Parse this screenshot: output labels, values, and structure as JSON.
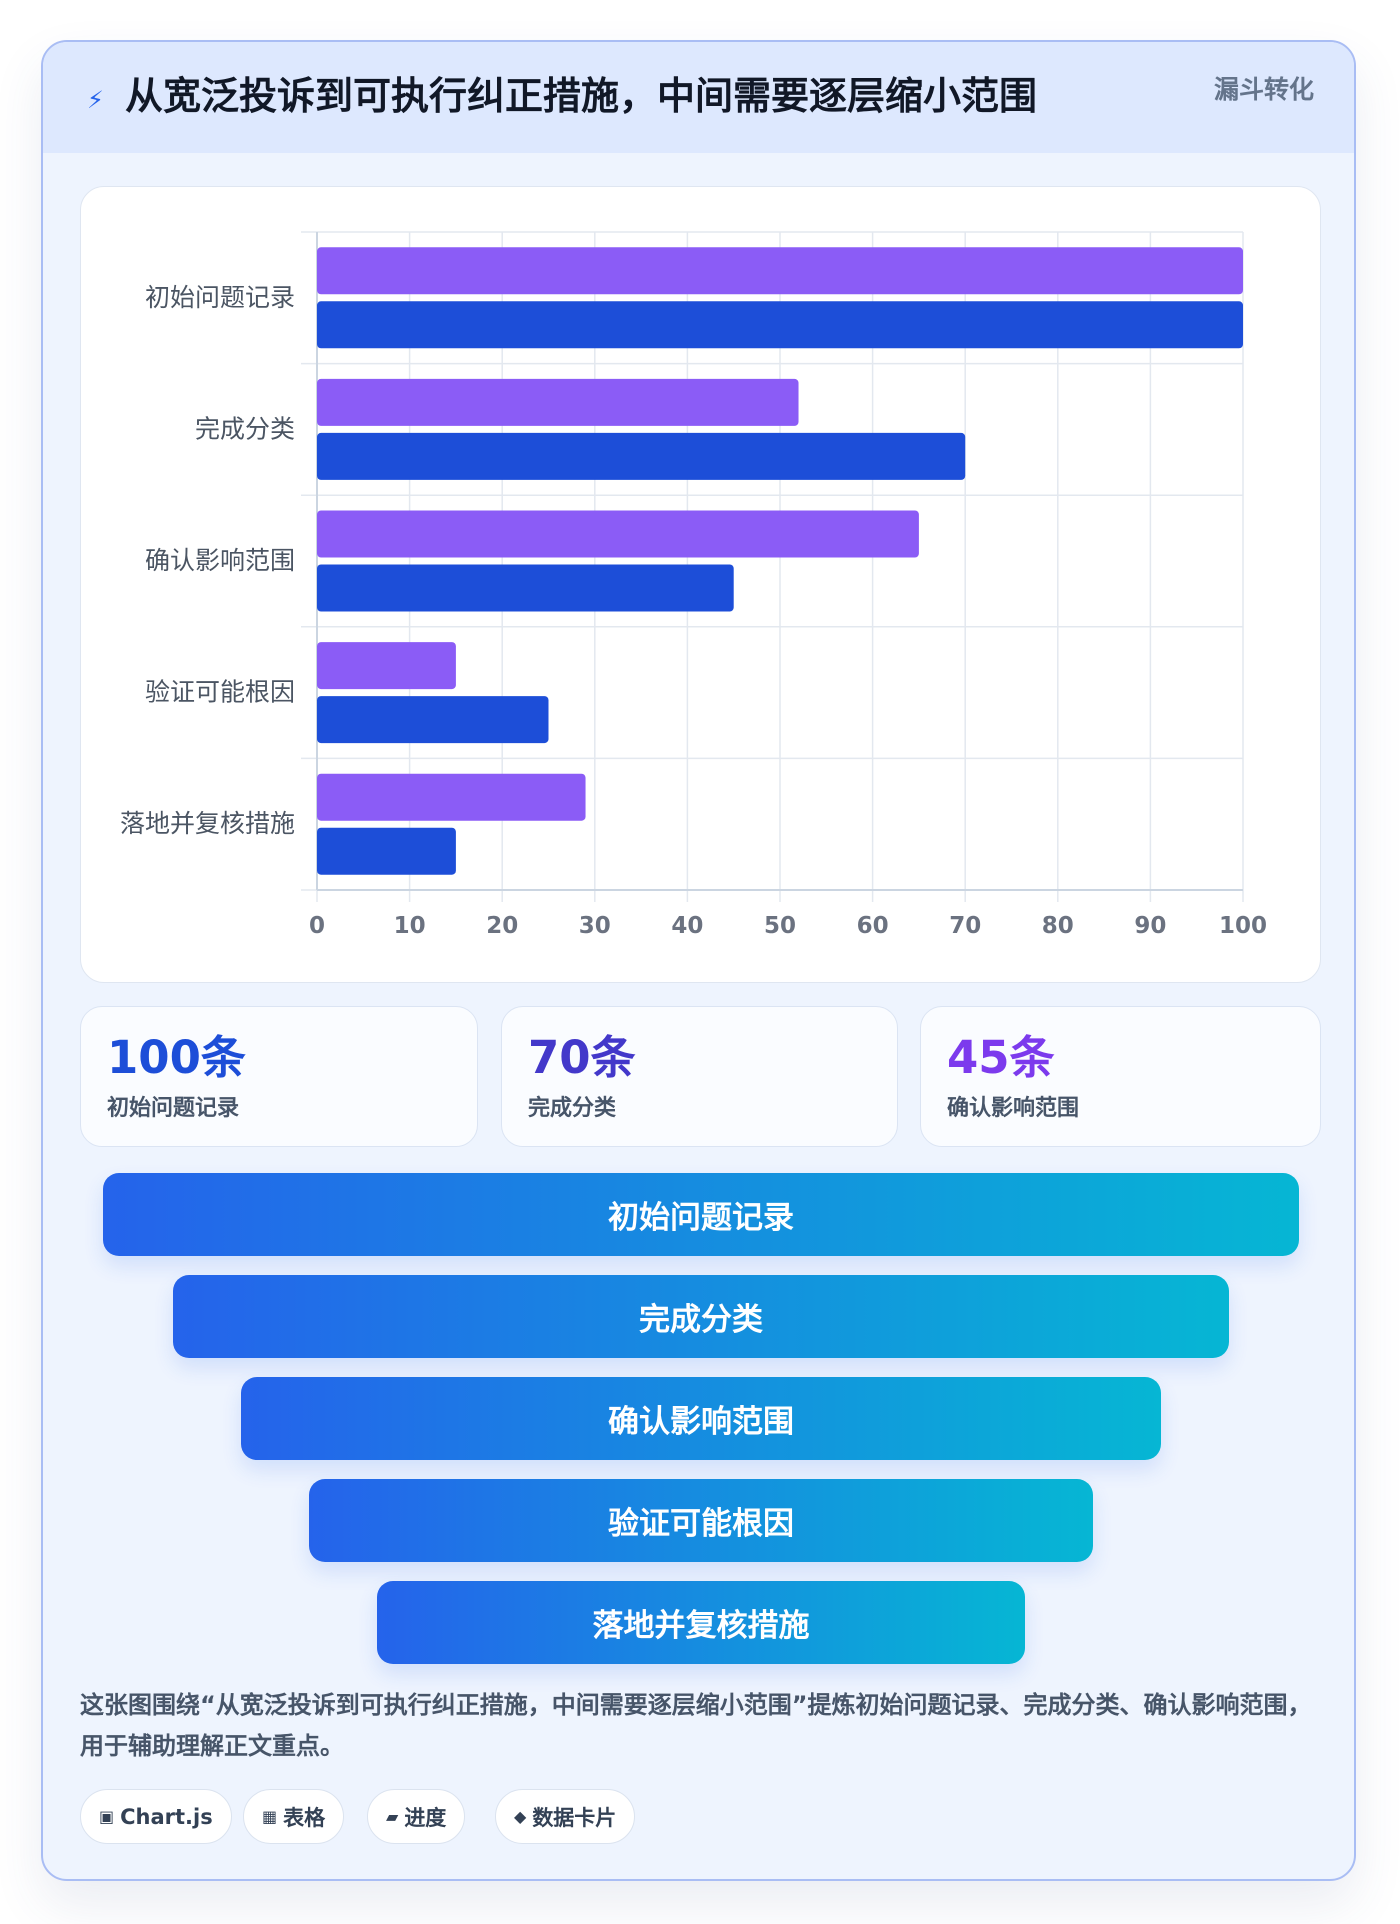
{
  "header": {
    "title": "从宽泛投诉到可执行纠正措施，中间需要逐层缩小范围",
    "tag": "漏斗转化",
    "icon": "lightning-icon"
  },
  "chart_data": {
    "type": "bar",
    "orientation": "horizontal",
    "categories": [
      "初始问题记录",
      "完成分类",
      "确认影响范围",
      "验证可能根因",
      "落地并复核措施"
    ],
    "series": [
      {
        "color": "#8b5cf6",
        "values": [
          100,
          52,
          65,
          15,
          29
        ]
      },
      {
        "color": "#1d4ed8",
        "values": [
          100,
          70,
          45,
          25,
          15
        ]
      }
    ],
    "xlim": [
      0,
      100
    ],
    "x_ticks": [
      "0",
      "10",
      "20",
      "30",
      "40",
      "50",
      "60",
      "70",
      "80",
      "90",
      "100"
    ],
    "grid": true
  },
  "stats": [
    {
      "value": "100条",
      "label": "初始问题记录",
      "color": "#1d4ed8"
    },
    {
      "value": "70条",
      "label": "完成分类",
      "color": "#4338ca"
    },
    {
      "value": "45条",
      "label": "确认影响范围",
      "color": "#7c3aed"
    }
  ],
  "funnel": [
    "初始问题记录",
    "完成分类",
    "确认影响范围",
    "验证可能根因",
    "落地并复核措施"
  ],
  "description": "这张图围绕“从宽泛投诉到可执行纠正措施，中间需要逐层缩小范围”提炼初始问题记录、完成分类、确认影响范围，用于辅助理解正文重点。",
  "chips": [
    {
      "icon": "▣",
      "label": "Chart.js"
    },
    {
      "icon": "▦",
      "label": "表格"
    },
    {
      "icon": "▰",
      "label": "进度"
    },
    {
      "icon": "◆",
      "label": "数据卡片"
    }
  ]
}
